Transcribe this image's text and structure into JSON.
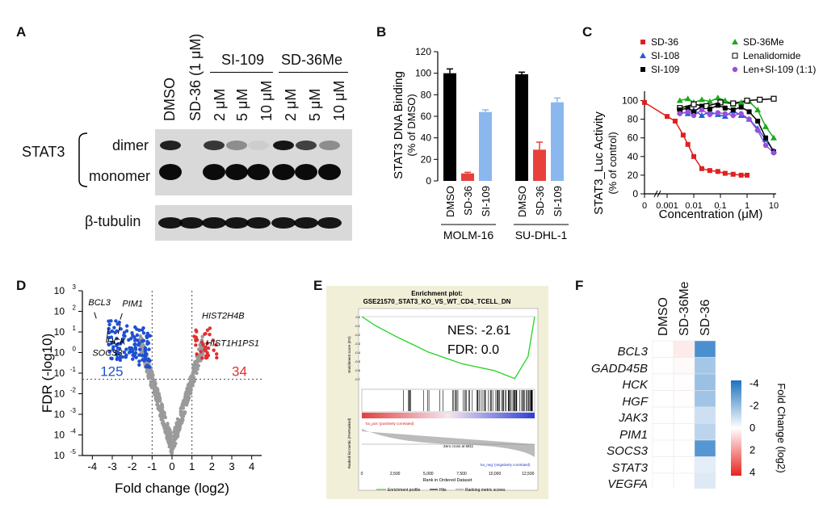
{
  "panels": {
    "A": {
      "label": "A",
      "lanes": [
        "DMSO",
        "SD-36 (1 μM)",
        "2 μM",
        "5 μM",
        "10 μM",
        "2 μM",
        "5 μM",
        "10 μM"
      ],
      "groups": [
        "SI-109",
        "SD-36Me"
      ],
      "protein": "STAT3",
      "bands": [
        "dimer",
        "monomer"
      ],
      "loading_control": "β-tubulin",
      "dimer_intensity": [
        0.85,
        0.0,
        0.75,
        0.35,
        0.05,
        0.9,
        0.7,
        0.35
      ],
      "monomer_intensity": [
        0.95,
        0.0,
        0.95,
        0.95,
        0.95,
        0.95,
        0.95,
        0.95
      ]
    },
    "B": {
      "label": "B",
      "ylabel_line1": "STAT3 DNA Binding",
      "ylabel_line2": "(% of DMSO)",
      "yticks": [
        "0",
        "20",
        "40",
        "60",
        "80",
        "100",
        "120"
      ],
      "groups": [
        "MOLM-16",
        "SU-DHL-1"
      ],
      "bar_labels": [
        "DMSO",
        "SD-36",
        "SI-109"
      ]
    },
    "C": {
      "label": "C",
      "ylabel_line1": "STAT3_Luc Activity",
      "ylabel_line2": "(% of control)",
      "xlabel": "Concentration (μM)",
      "xticks": [
        "0",
        "0.001",
        "0.01",
        "0.1",
        "1",
        "10"
      ],
      "yticks": [
        "0",
        "20",
        "40",
        "60",
        "80",
        "100"
      ],
      "legend": [
        "SD-36",
        "SD-36Me",
        "SI-108",
        "Lenalidomide",
        "SI-109",
        "Len+SI-109 (1:1)"
      ]
    },
    "D": {
      "label": "D",
      "ylabel": "FDR (-log10)",
      "xlabel": "Fold change (log2)",
      "xticks": [
        "-4",
        "-3",
        "-2",
        "-1",
        "0",
        "1",
        "2",
        "3",
        "4"
      ],
      "down_count": "125",
      "up_count": "34",
      "genes": [
        "BCL3",
        "PIM1",
        "HCK",
        "SOCS3",
        "HIST2H4B",
        "HIST1H1PS1"
      ]
    },
    "E": {
      "label": "E",
      "title_line1": "Enrichment plot:",
      "title_line2": "GSE21570_STAT3_KO_VS_WT_CD4_TCELL_DN",
      "nes": "NES: -2.61",
      "fdr": "FDR:     0.0",
      "xlabel": "Rank in Ordered Dataset",
      "ylabel_top": "Enrichment score (ES)",
      "ylabel_bottom": "Ranked list metric (PreRanked)",
      "pos_label": "'na_pos' (positively correlated)",
      "neg_label": "'na_neg' (negatively correlated)",
      "zero_cross": "Zero cross at 6811",
      "legend": [
        "Enrichment profile",
        "Hits",
        "Ranking metric scores"
      ],
      "xticks": [
        "0",
        "2,500",
        "5,000",
        "7,500",
        "10,000",
        "12,500"
      ]
    },
    "F": {
      "label": "F",
      "columns": [
        "DMSO",
        "SD-36Me",
        "SD-36"
      ],
      "rows": [
        "BCL3",
        "GADD45B",
        "HCK",
        "HGF",
        "JAK3",
        "PIM1",
        "SOCS3",
        "STAT3",
        "VEGFA"
      ],
      "values": [
        [
          0,
          0.4,
          -3.2
        ],
        [
          0,
          0.1,
          -1.6
        ],
        [
          0,
          0.05,
          -1.8
        ],
        [
          0,
          0.05,
          -1.7
        ],
        [
          0,
          0,
          -0.9
        ],
        [
          0,
          0,
          -1.2
        ],
        [
          0,
          0,
          -3.0
        ],
        [
          0,
          0,
          -0.5
        ],
        [
          0,
          0,
          -0.6
        ]
      ],
      "colorbar_title": "Fold Change (log2)",
      "colorbar_ticks": [
        "-4",
        "-2",
        "0",
        "2",
        "4"
      ]
    }
  },
  "chart_data": [
    {
      "type": "bar",
      "title": "",
      "ylabel": "STAT3 DNA Binding (% of DMSO)",
      "categories": [
        "MOLM-16 DMSO",
        "MOLM-16 SD-36",
        "MOLM-16 SI-109",
        "SU-DHL-1 DMSO",
        "SU-DHL-1 SD-36",
        "SU-DHL-1 SI-109"
      ],
      "values": [
        100,
        7,
        64,
        99,
        29,
        73
      ],
      "errors": [
        4,
        1,
        2,
        2,
        7,
        4
      ],
      "colors": [
        "#000000",
        "#e8413c",
        "#8ab8ee",
        "#000000",
        "#e8413c",
        "#8ab8ee"
      ],
      "ylim": [
        0,
        120
      ]
    },
    {
      "type": "scatter",
      "xlabel": "Concentration (μM)",
      "ylabel": "STAT3_Luc Activity (% of control)",
      "ylim": [
        0,
        110
      ],
      "x_scale": "log",
      "series": [
        {
          "name": "SD-36",
          "color": "#e02020",
          "marker": "square",
          "x": [
            0.0003,
            0.001,
            0.002,
            0.004,
            0.006,
            0.01,
            0.02,
            0.04,
            0.08,
            0.15,
            0.3,
            0.6,
            1.0
          ],
          "y": [
            98,
            83,
            78,
            63,
            53,
            40,
            27,
            25,
            24,
            22,
            21,
            20,
            20
          ]
        },
        {
          "name": "SD-36Me",
          "color": "#1ea81e",
          "marker": "triangle",
          "x": [
            0.003,
            0.006,
            0.01,
            0.02,
            0.04,
            0.08,
            0.15,
            0.3,
            0.6,
            1.2,
            2.5,
            5,
            10
          ],
          "y": [
            100,
            102,
            98,
            101,
            99,
            103,
            100,
            96,
            98,
            99,
            90,
            72,
            60
          ]
        },
        {
          "name": "SI-108",
          "color": "#2a5ad8",
          "marker": "triangle",
          "x": [
            0.003,
            0.006,
            0.01,
            0.02,
            0.04,
            0.08,
            0.15,
            0.3,
            0.6,
            1.2,
            2.5,
            5,
            10
          ],
          "y": [
            88,
            86,
            90,
            84,
            88,
            85,
            83,
            89,
            84,
            80,
            70,
            58,
            46
          ]
        },
        {
          "name": "Lenalidomide",
          "color": "#000000",
          "marker": "open-square",
          "x": [
            0.003,
            0.01,
            0.03,
            0.1,
            0.3,
            1,
            3,
            10
          ],
          "y": [
            92,
            96,
            94,
            98,
            97,
            100,
            101,
            102
          ]
        },
        {
          "name": "SI-109",
          "color": "#000000",
          "marker": "square",
          "x": [
            0.003,
            0.006,
            0.01,
            0.02,
            0.04,
            0.08,
            0.15,
            0.3,
            0.6,
            1.2,
            2.5,
            5,
            10
          ],
          "y": [
            90,
            92,
            88,
            94,
            91,
            95,
            92,
            90,
            93,
            88,
            78,
            60,
            45
          ]
        },
        {
          "name": "Len+SI-109 (1:1)",
          "color": "#9b4fd6",
          "marker": "circle",
          "x": [
            0.003,
            0.006,
            0.01,
            0.02,
            0.04,
            0.08,
            0.15,
            0.3,
            0.6,
            1.2,
            2.5,
            5,
            10
          ],
          "y": [
            86,
            88,
            84,
            90,
            85,
            87,
            86,
            84,
            86,
            80,
            68,
            52,
            44
          ]
        }
      ]
    },
    {
      "type": "scatter",
      "xlabel": "Fold change (log2)",
      "ylabel": "FDR (-log10)",
      "xlim": [
        -4.5,
        4.5
      ],
      "y_scale": "log",
      "ylim": [
        1e-05,
        1000
      ],
      "thresholds": {
        "x": [
          -1,
          1
        ],
        "y": 0.05
      },
      "labeled_points": [
        {
          "name": "BCL3",
          "x": -3.8,
          "y": 40
        },
        {
          "name": "PIM1",
          "x": -2.4,
          "y": 40
        },
        {
          "name": "HCK",
          "x": -2.8,
          "y": 30
        },
        {
          "name": "SOCS3",
          "x": -3.5,
          "y": 5
        },
        {
          "name": "HIST2H4B",
          "x": 1.9,
          "y": 12
        },
        {
          "name": "HIST1H1PS1",
          "x": 2.1,
          "y": 4
        }
      ]
    },
    {
      "type": "line",
      "title": "Enrichment plot: GSE21570_STAT3_KO_VS_WT_CD4_TCELL_DN",
      "xlabel": "Rank in Ordered Dataset",
      "ylabel": "Enrichment score (ES)",
      "x": [
        0,
        1000,
        2500,
        5000,
        7500,
        10000,
        11500,
        12500,
        13000
      ],
      "y": [
        0,
        -0.1,
        -0.22,
        -0.4,
        -0.53,
        -0.61,
        -0.7,
        -0.45,
        0.0
      ]
    },
    {
      "type": "heatmap",
      "columns": [
        "DMSO",
        "SD-36Me",
        "SD-36"
      ],
      "rows": [
        "BCL3",
        "GADD45B",
        "HCK",
        "HGF",
        "JAK3",
        "PIM1",
        "SOCS3",
        "STAT3",
        "VEGFA"
      ],
      "values": [
        [
          0,
          0.4,
          -3.2
        ],
        [
          0,
          0.1,
          -1.6
        ],
        [
          0,
          0.05,
          -1.8
        ],
        [
          0,
          0.05,
          -1.7
        ],
        [
          0,
          0,
          -0.9
        ],
        [
          0,
          0,
          -1.2
        ],
        [
          0,
          0,
          -3.0
        ],
        [
          0,
          0,
          -0.5
        ],
        [
          0,
          0,
          -0.6
        ]
      ],
      "range": [
        -4,
        4
      ]
    }
  ]
}
